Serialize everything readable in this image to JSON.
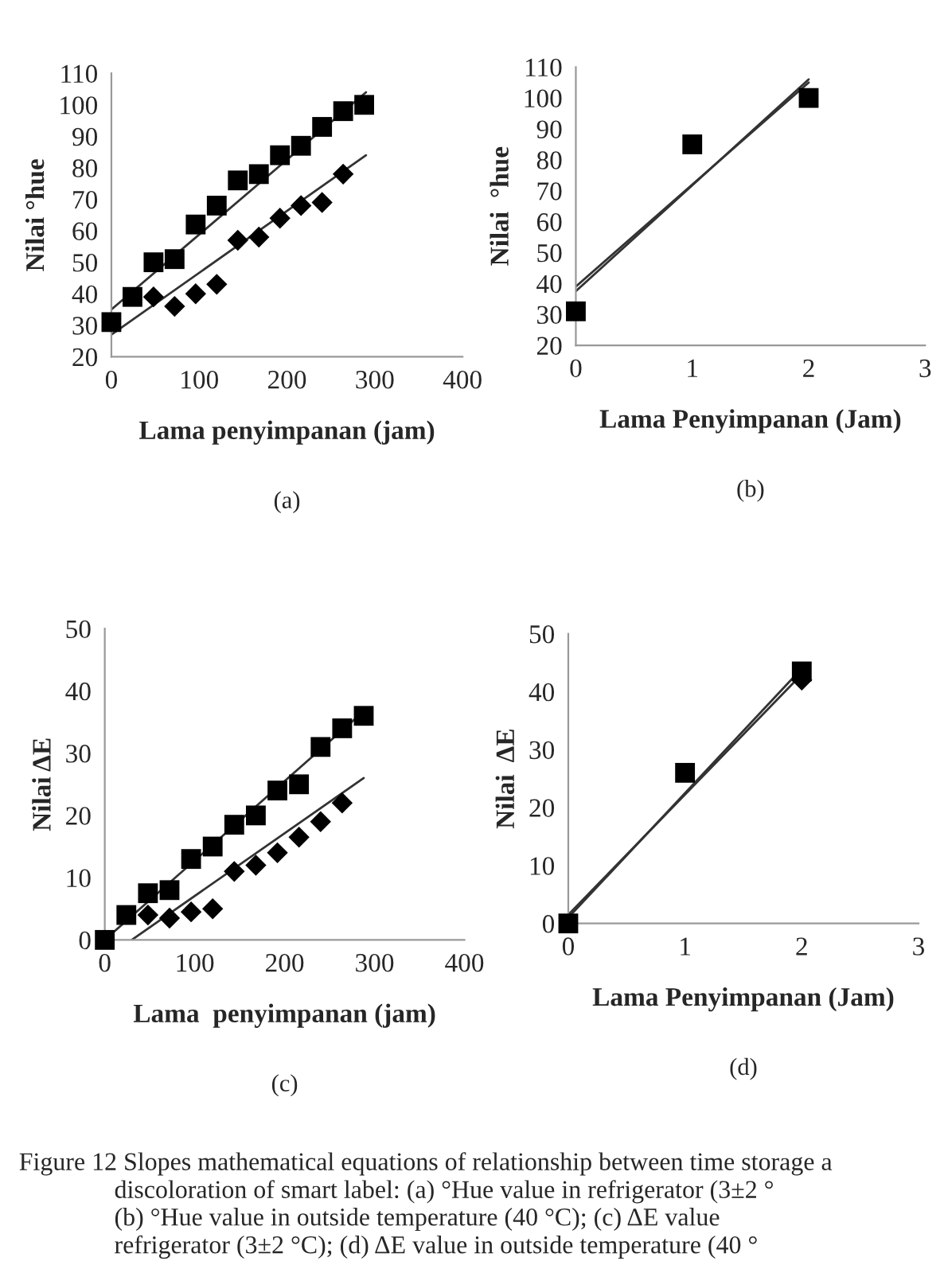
{
  "chart_data": [
    {
      "type": "scatter",
      "xlabel": "Lama penyimpanan (jam)",
      "ylabel": "Nilai °hue",
      "xlim": [
        0,
        400
      ],
      "xticks": [
        0,
        100,
        200,
        300,
        400
      ],
      "ylim": [
        20,
        110
      ],
      "yticks": [
        20,
        30,
        40,
        50,
        60,
        70,
        80,
        90,
        100,
        110
      ],
      "grid": false,
      "legend": false,
      "series": [
        {
          "marker": "square",
          "color": "#000000",
          "x": [
            0,
            24,
            48,
            72,
            96,
            120,
            144,
            168,
            192,
            216,
            240,
            264,
            288
          ],
          "values": [
            31,
            39,
            50,
            51,
            62,
            68,
            76,
            78,
            84,
            87,
            93,
            98,
            100
          ]
        },
        {
          "marker": "diamond",
          "color": "#000000",
          "x": [
            48,
            72,
            96,
            120,
            144,
            168,
            192,
            216,
            240,
            264
          ],
          "values": [
            39,
            36,
            40,
            43,
            57,
            58,
            64,
            68,
            69,
            78
          ]
        },
        {
          "type": "line",
          "color": "#333333",
          "x": [
            0,
            290
          ],
          "values": [
            35,
            104
          ]
        },
        {
          "type": "line",
          "color": "#333333",
          "x": [
            0,
            290
          ],
          "values": [
            27,
            84
          ]
        }
      ],
      "annotations": [
        "(a)"
      ]
    },
    {
      "type": "scatter",
      "xlabel": "Lama Penyimpanan (Jam)",
      "ylabel": "Nilai  °hue",
      "xlim": [
        0,
        3
      ],
      "xticks": [
        0,
        1,
        2,
        3
      ],
      "ylim": [
        20,
        110
      ],
      "yticks": [
        20,
        30,
        40,
        50,
        60,
        70,
        80,
        90,
        100,
        110
      ],
      "grid": false,
      "legend": false,
      "series": [
        {
          "type": "line",
          "color": "#333333",
          "x": [
            0,
            2
          ],
          "values": [
            37.5,
            106
          ]
        },
        {
          "type": "line",
          "color": "#333333",
          "x": [
            0,
            2
          ],
          "values": [
            39,
            105
          ]
        },
        {
          "marker": "square",
          "color": "#000000",
          "x": [
            0,
            1,
            2
          ],
          "values": [
            31,
            85,
            100
          ]
        }
      ],
      "annotations": [
        "(b)"
      ]
    },
    {
      "type": "scatter",
      "xlabel": "Lama  penyimpanan (jam)",
      "ylabel": "Nilai ΔE",
      "xlim": [
        0,
        400
      ],
      "xticks": [
        0,
        100,
        200,
        300,
        400
      ],
      "ylim": [
        0,
        50
      ],
      "yticks": [
        0,
        10,
        20,
        30,
        40,
        50
      ],
      "grid": false,
      "legend": false,
      "series": [
        {
          "marker": "square",
          "color": "#000000",
          "x": [
            0,
            24,
            48,
            72,
            96,
            120,
            144,
            168,
            192,
            216,
            240,
            264,
            288
          ],
          "values": [
            0,
            4,
            7.5,
            8,
            13,
            15,
            18.5,
            20,
            24,
            25,
            31,
            34,
            36
          ]
        },
        {
          "marker": "diamond",
          "color": "#000000",
          "x": [
            48,
            72,
            96,
            120,
            144,
            168,
            192,
            216,
            240,
            264
          ],
          "values": [
            4,
            3.5,
            4.5,
            5,
            11,
            12,
            14,
            16.5,
            19,
            22
          ]
        },
        {
          "type": "line",
          "color": "#333333",
          "x": [
            0,
            290
          ],
          "values": [
            0,
            37
          ]
        },
        {
          "type": "line",
          "color": "#333333",
          "x": [
            30,
            288
          ],
          "values": [
            0,
            26
          ]
        }
      ],
      "annotations": [
        "(c)"
      ]
    },
    {
      "type": "scatter",
      "xlabel": "Lama Penyimpanan (Jam)",
      "ylabel": "Nilai  ΔE",
      "xlim": [
        0,
        3
      ],
      "xticks": [
        0,
        1,
        2,
        3
      ],
      "ylim": [
        0,
        50
      ],
      "yticks": [
        0,
        10,
        20,
        30,
        40,
        50
      ],
      "grid": false,
      "legend": false,
      "series": [
        {
          "type": "line",
          "color": "#333333",
          "x": [
            0,
            2
          ],
          "values": [
            1,
            44
          ]
        },
        {
          "type": "line",
          "color": "#333333",
          "x": [
            0,
            2
          ],
          "values": [
            1.5,
            43
          ]
        },
        {
          "marker": "diamond",
          "color": "#000000",
          "x": [
            2
          ],
          "values": [
            42
          ]
        },
        {
          "marker": "square",
          "color": "#000000",
          "x": [
            0,
            1,
            2
          ],
          "values": [
            0,
            26,
            43.5
          ]
        }
      ],
      "annotations": [
        "(d)",
        "Figure 12 Slopes mathematical equations of relationship between time storage a\n               discoloration of smart label: (a) °Hue value in refrigerator (3±2 °\n               (b) °Hue value in outside temperature (40 °C); (c) ΔE value\n               refrigerator (3±2 °C); (d) ΔE value in outside temperature (40 °"
      ]
    }
  ]
}
